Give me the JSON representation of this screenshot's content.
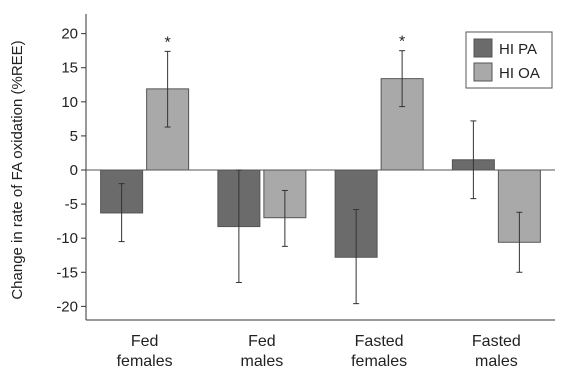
{
  "chart_data": {
    "type": "bar",
    "ylabel": "Change in rate of FA oxidation (%REE)",
    "ylim": [
      -22,
      22
    ],
    "yticks": [
      20,
      15,
      10,
      5,
      0,
      -5,
      -10,
      -15,
      -20
    ],
    "categories": [
      {
        "line1": "Fed",
        "line2": "females"
      },
      {
        "line1": "Fed",
        "line2": "males"
      },
      {
        "line1": "Fasted",
        "line2": "females"
      },
      {
        "line1": "Fasted",
        "line2": "males"
      }
    ],
    "series": [
      {
        "name": "HI PA",
        "color": "#6b6b6b",
        "values": [
          -6.3,
          -8.3,
          -12.8,
          1.5
        ],
        "err_low": [
          -10.5,
          -16.5,
          -19.6,
          -4.2
        ],
        "err_high": [
          -2.0,
          0.0,
          -5.8,
          7.2
        ],
        "significant": [
          false,
          false,
          false,
          false
        ]
      },
      {
        "name": "HI OA",
        "color": "#a9a9a9",
        "values": [
          11.9,
          -7.0,
          13.4,
          -10.6
        ],
        "err_low": [
          6.3,
          -11.2,
          9.3,
          -15.0
        ],
        "err_high": [
          17.4,
          -3.0,
          17.5,
          -6.2
        ],
        "significant": [
          true,
          false,
          true,
          false
        ]
      }
    ],
    "significance_marker": "*",
    "legend_position": "top-right",
    "grid": false
  }
}
